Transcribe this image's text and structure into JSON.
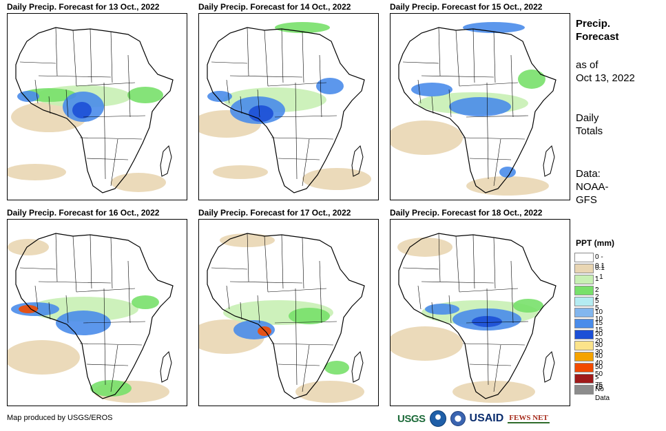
{
  "panels": [
    {
      "title": "Daily Precip. Forecast for 13 Oct., 2022"
    },
    {
      "title": "Daily Precip. Forecast for 14 Oct., 2022"
    },
    {
      "title": "Daily Precip. Forecast for 15 Oct., 2022"
    },
    {
      "title": "Daily Precip. Forecast for 16 Oct., 2022"
    },
    {
      "title": "Daily Precip. Forecast for 17 Oct., 2022"
    },
    {
      "title": "Daily Precip. Forecast for 18 Oct., 2022"
    }
  ],
  "side": {
    "title_line1": "Precip.",
    "title_line2": "Forecast",
    "asof_line1": "as of",
    "asof_line2": "Oct 13, 2022",
    "daily_line1": "Daily",
    "daily_line2": "Totals",
    "data_line1": "Data:",
    "data_line2": "NOAA-",
    "data_line3": "GFS"
  },
  "legend": {
    "title": "PPT (mm)",
    "items": [
      {
        "label": "0 - 0.1",
        "color": "#ffffff"
      },
      {
        "label": "0.1 - 1",
        "color": "#e9d6b3"
      },
      {
        "label": "1 - 2",
        "color": "#c8f0b4"
      },
      {
        "label": "2 - 5",
        "color": "#78e06a"
      },
      {
        "label": "5 - 10",
        "color": "#b4ecf2"
      },
      {
        "label": "10 - 15",
        "color": "#82b6ee"
      },
      {
        "label": "15 - 20",
        "color": "#4a8cea"
      },
      {
        "label": "20 - 30",
        "color": "#1c4fd6"
      },
      {
        "label": "30 - 40",
        "color": "#fbe38a"
      },
      {
        "label": "40 - 50",
        "color": "#f5a300"
      },
      {
        "label": "50 - 75",
        "color": "#f24a00"
      },
      {
        "label": "> 75",
        "color": "#a01a1a"
      },
      {
        "label": "No Data",
        "color": "#8c8c8c"
      }
    ]
  },
  "footer": {
    "credit": "Map produced by USGS/EROS",
    "logos": {
      "usgs": "USGS",
      "usaid": "USAID",
      "fews": "FEWS NET"
    }
  },
  "colors": {
    "land": "#ffffff",
    "drizzle": "#e9d6b3",
    "light": "#c8f0b4",
    "moderate": "#78e06a",
    "heavy": "#4a8cea",
    "veryheavy": "#1c4fd6",
    "extreme": "#f24a00"
  }
}
